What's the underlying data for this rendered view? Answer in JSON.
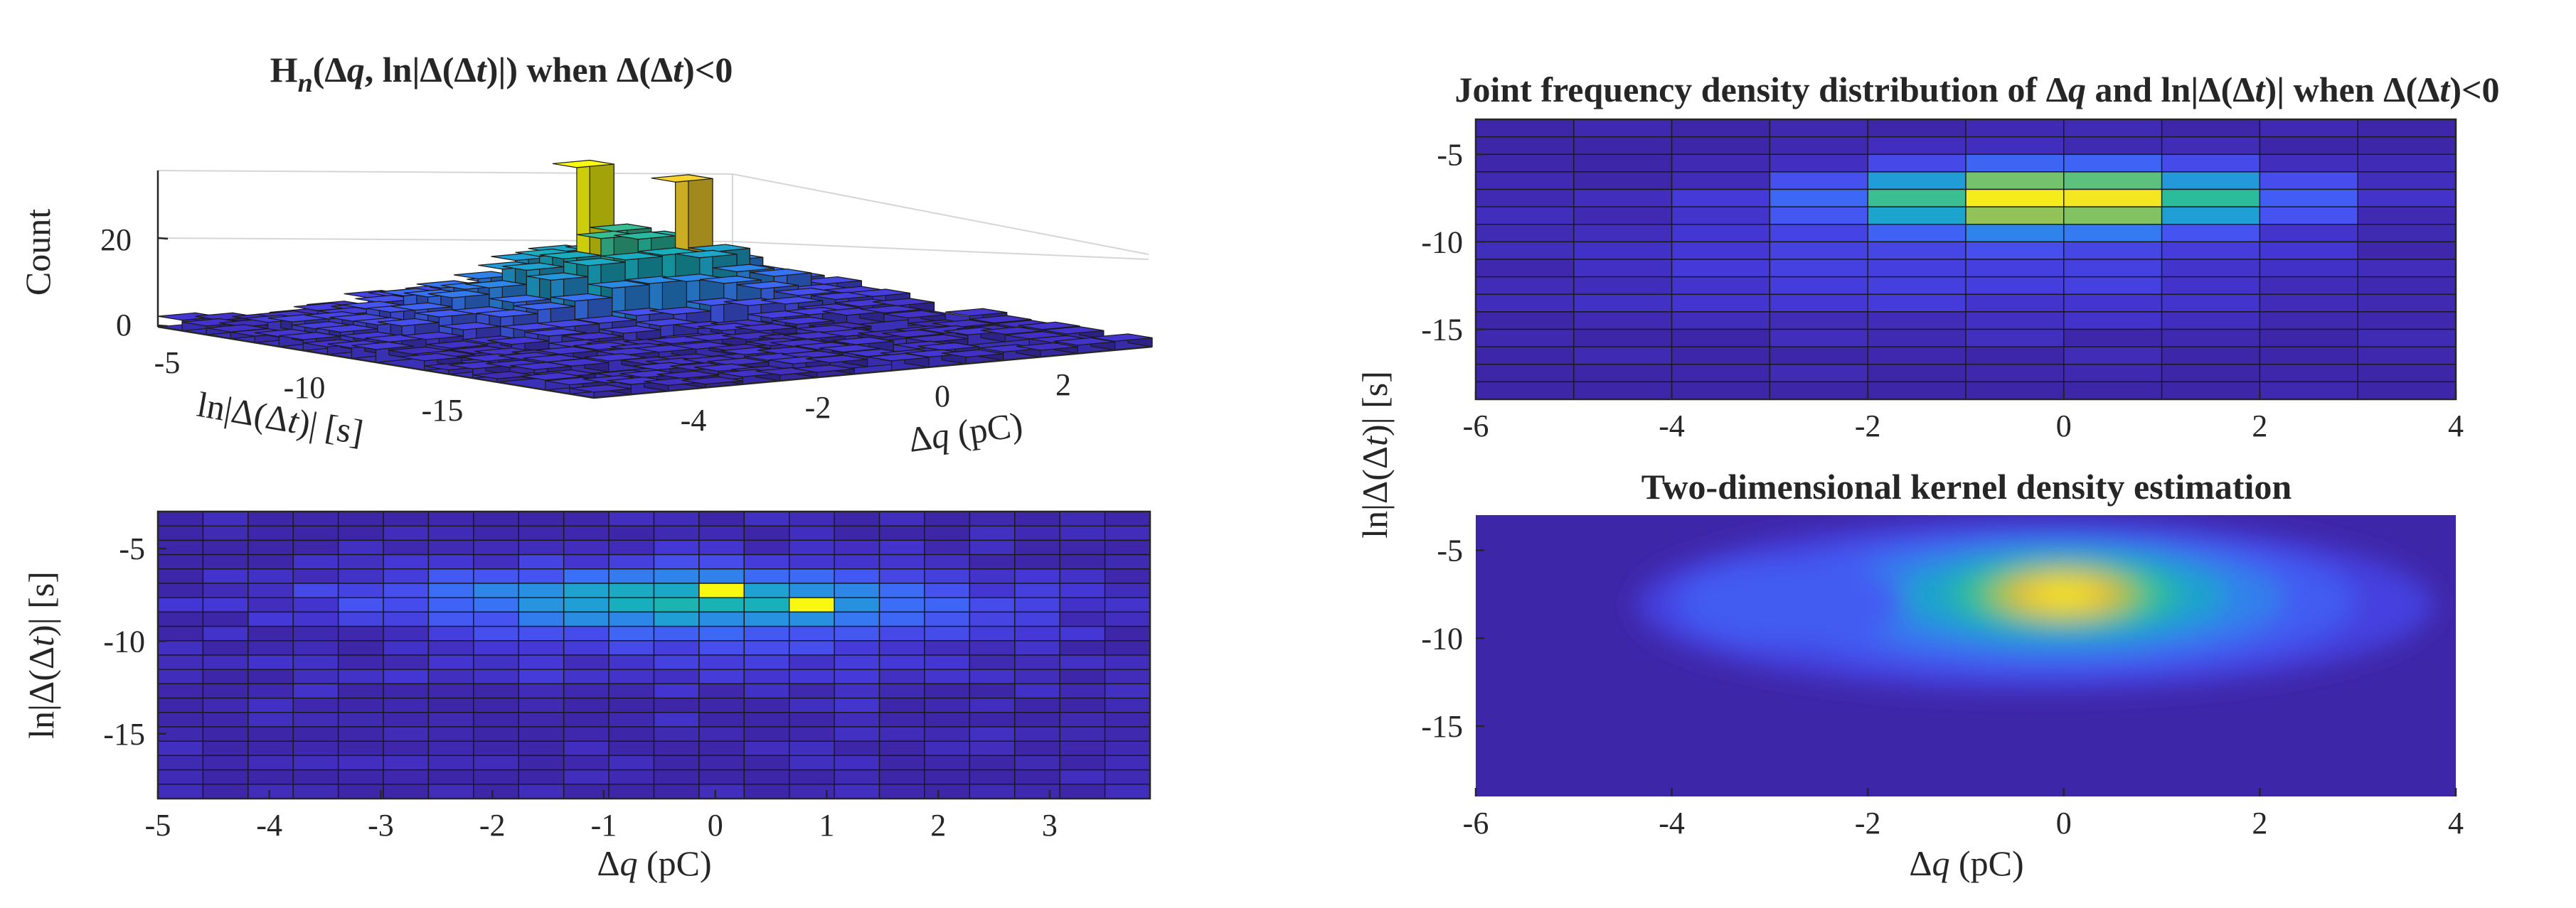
{
  "colors": {
    "parula": [
      "#3E26A8",
      "#4538D8",
      "#4652F0",
      "#3A6FF7",
      "#2B8AE6",
      "#1FA0D4",
      "#17B1B8",
      "#2ABC9C",
      "#60C27A",
      "#A2C24E",
      "#D7BA35",
      "#FAC134",
      "#F5E424",
      "#F9FB0E"
    ],
    "grid_line": "#1a1a1a",
    "axis": "#262626",
    "box": "#cfcfcf"
  },
  "chart_data": [
    {
      "id": "hist3d",
      "type": "bar3d",
      "title_parts": [
        "H",
        "n",
        "(Δ",
        "q",
        ", ln|Δ(Δ",
        "t",
        ")|) when Δ(Δ",
        "t",
        ")<0"
      ],
      "xlabel_parts": [
        "Δ",
        "q",
        " (pC)"
      ],
      "ylabel_parts": [
        "ln|Δ(Δ",
        "t",
        ")| [s]"
      ],
      "zlabel": "Count",
      "x_ticks": [
        "-4",
        "-2",
        "0",
        "2"
      ],
      "y_ticks": [
        "-5",
        "-10",
        "-15"
      ],
      "z_ticks": [
        "20",
        "0"
      ],
      "peaks": [
        {
          "dq": -0.5,
          "lndt": -7.5,
          "count": 35
        },
        {
          "dq": 0.5,
          "lndt": -8.0,
          "count": 31
        }
      ]
    },
    {
      "id": "hist2d_bottom",
      "type": "heatmap",
      "xlabel_parts": [
        "Δ",
        "q",
        " (pC)"
      ],
      "ylabel_parts": [
        "ln|Δ(Δ",
        "t",
        ")| [s]"
      ],
      "xlim": [
        -5,
        3.9
      ],
      "ylim": [
        -18.5,
        -3
      ],
      "x_ticks": [
        "-5",
        "-4",
        "-3",
        "-2",
        "-1",
        "0",
        "1",
        "2",
        "3"
      ],
      "y_ticks": [
        "-5",
        "-10",
        "-15"
      ],
      "nx": 22,
      "ny": 20,
      "peaks": [
        {
          "dq": -0.1,
          "lndt": -7.2,
          "count": 35
        },
        {
          "dq": 0.7,
          "lndt": -8.0,
          "count": 31
        }
      ]
    },
    {
      "id": "hist2d_top_right",
      "type": "heatmap",
      "title_parts": [
        "Joint frequency density distribution of Δ",
        "q",
        " and ln|Δ(Δ",
        "t",
        ")| when Δ(Δ",
        "t",
        ")<0"
      ],
      "xlim": [
        -6,
        4
      ],
      "ylim": [
        -19,
        -3
      ],
      "x_ticks": [
        "-6",
        "-4",
        "-2",
        "0",
        "2",
        "4"
      ],
      "y_ticks": [
        "-5",
        "-10",
        "-15"
      ],
      "nx": 10,
      "ny": 16,
      "peak": {
        "dq": 0,
        "lndt": -7.5
      }
    },
    {
      "id": "kde",
      "type": "density",
      "title": "Two-dimensional kernel density estimation",
      "xlabel_parts": [
        "Δ",
        "q",
        " (pC)"
      ],
      "shared_ylabel_parts": [
        "ln|Δ(Δ",
        "t",
        ")| [s]"
      ],
      "xlim": [
        -6,
        4
      ],
      "ylim": [
        -19,
        -3
      ],
      "x_ticks": [
        "-6",
        "-4",
        "-2",
        "0",
        "2",
        "4"
      ],
      "y_ticks": [
        "-5",
        "-10",
        "-15"
      ],
      "peak": {
        "dq": 0,
        "lndt": -7.5
      }
    }
  ]
}
